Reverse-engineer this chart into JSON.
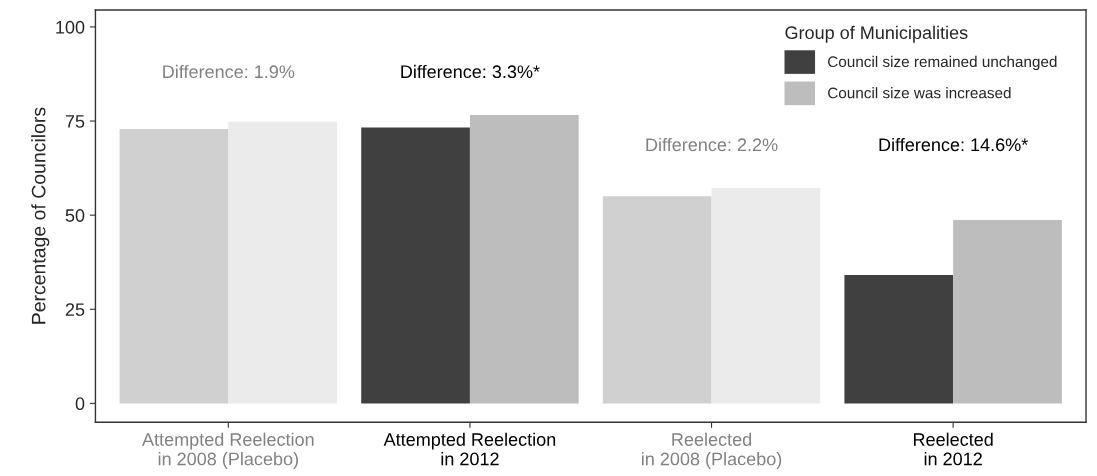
{
  "chart_data": {
    "type": "bar",
    "ylabel": "Percentage of Councilors",
    "legend_title": "Group of Municipalities",
    "legend": "top right",
    "grid": false,
    "categories": [
      "Attempted Reelection\nin 2008 (Placebo)",
      "Attempted Reelection\nin 2012",
      "Reelected\nin 2008 (Placebo)",
      "Reelected\nin 2012"
    ],
    "series": [
      {
        "name": "Council size remained unchanged",
        "color": "#404040",
        "colors": [
          "#d0d0d0",
          "#404040",
          "#d0d0d0",
          "#404040"
        ],
        "values": [
          72.9,
          73.3,
          55.0,
          34.1
        ]
      },
      {
        "name": "Council size was increased",
        "color": "#bdbdbd",
        "colors": [
          "#ebebeb",
          "#bdbdbd",
          "#ebebeb",
          "#bdbdbd"
        ],
        "values": [
          74.8,
          76.6,
          57.2,
          48.7
        ]
      }
    ],
    "ylim": [
      -5,
      104.5
    ],
    "yticks": [
      0,
      25,
      50,
      75,
      100
    ],
    "annotations": [
      "Difference: 1.9%",
      "Difference: 3.3%*",
      "Difference: 2.2%",
      "Difference: 14.6%*"
    ]
  }
}
